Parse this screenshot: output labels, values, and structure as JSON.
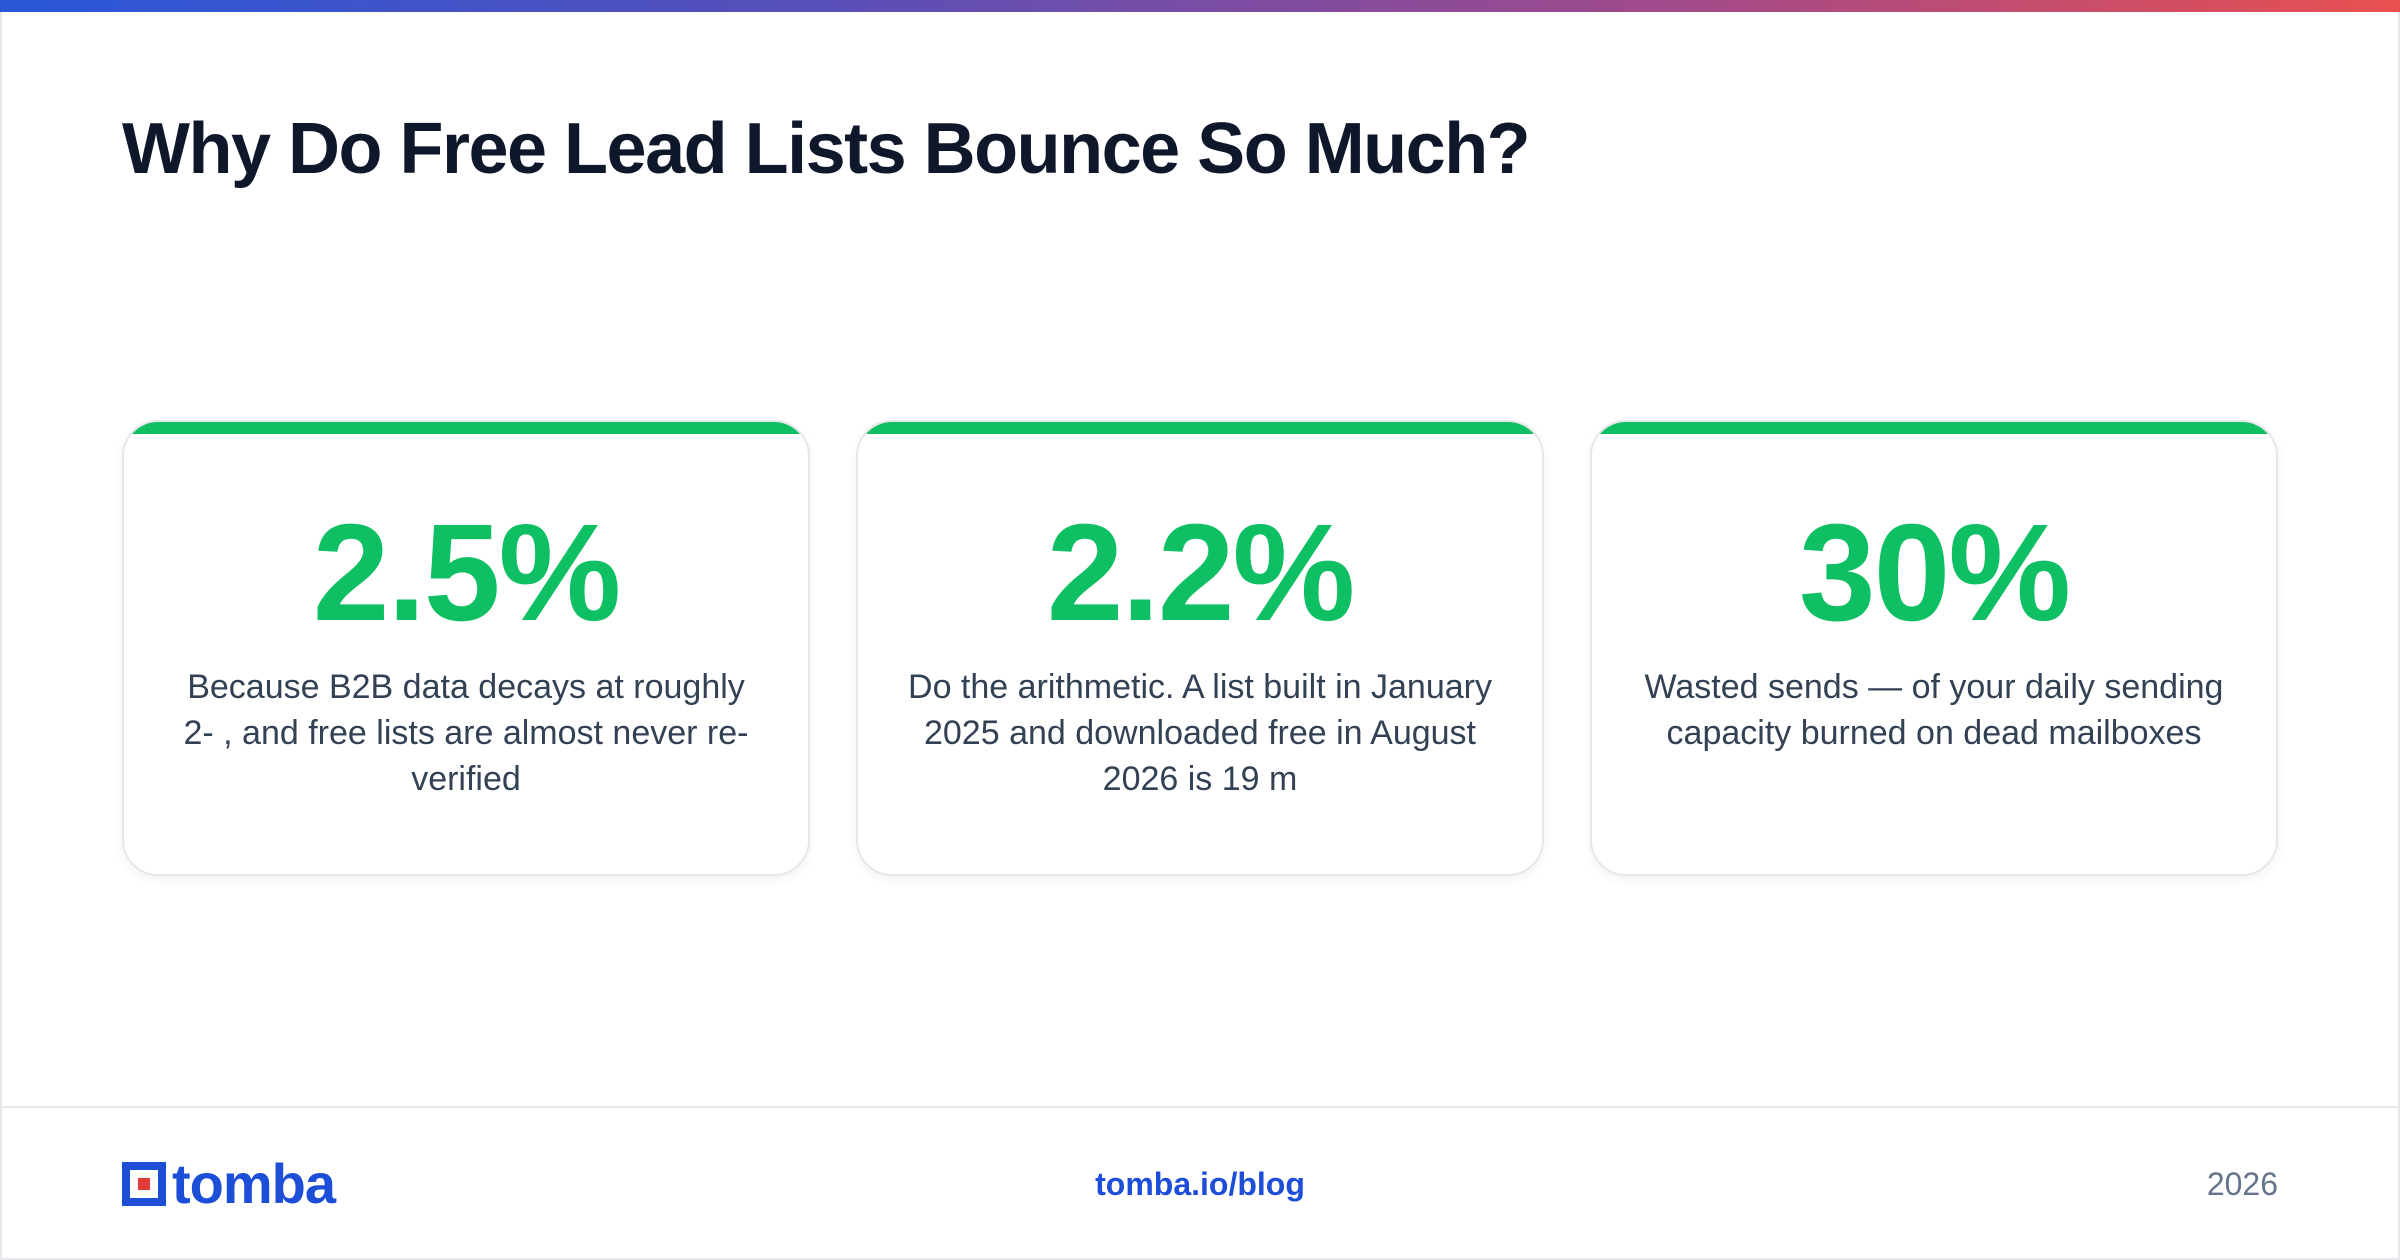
{
  "header": {
    "title": "Why Do Free Lead Lists Bounce So Much?"
  },
  "cards": [
    {
      "value": "2.5%",
      "description": "Because B2B data decays at roughly 2- , and free lists are almost never re-verified"
    },
    {
      "value": "2.2%",
      "description": "Do the arithmetic. A list built in January 2025 and downloaded free in August 2026 is 19 m"
    },
    {
      "value": "30%",
      "description": "Wasted sends — of your daily sending capacity burned on dead mailboxes"
    }
  ],
  "footer": {
    "logo_text": "tomba",
    "link": "tomba.io/blog",
    "year": "2026"
  },
  "colors": {
    "accent_green": "#0fbf64",
    "brand_blue": "#1d4ed8",
    "brand_red": "#e53935"
  }
}
